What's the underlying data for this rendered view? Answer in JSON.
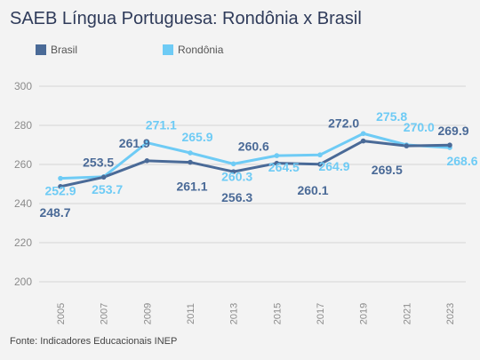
{
  "title": "SAEB Língua Portuguesa: Rondônia x Brasil",
  "source": "Fonte: Indicadores Educacionais INEP",
  "chart_data": {
    "type": "line",
    "title": "SAEB Língua Portuguesa: Rondônia x Brasil",
    "x": [
      "2005",
      "2007",
      "2009",
      "2011",
      "2013",
      "2015",
      "2017",
      "2019",
      "2021",
      "2023"
    ],
    "series": [
      {
        "name": "Brasil",
        "color": "#4a6a97",
        "values": [
          248.7,
          253.5,
          261.9,
          261.1,
          256.3,
          260.6,
          260.1,
          272.0,
          269.5,
          269.9
        ],
        "labels": [
          "248.7",
          "253.5",
          "261.9",
          "261.1",
          "256.3",
          "260.6",
          "260.1",
          "272.0",
          "269.5",
          "269.9"
        ]
      },
      {
        "name": "Rondônia",
        "color": "#6ecbf5",
        "values": [
          252.9,
          253.7,
          271.1,
          265.9,
          260.3,
          264.5,
          264.9,
          275.8,
          270.0,
          268.6
        ],
        "labels": [
          "252.9",
          "253.7",
          "271.1",
          "265.9",
          "260.3",
          "264.5",
          "264.9",
          "275.8",
          "270.0",
          "268.6"
        ]
      }
    ],
    "y_ticks": [
      200,
      220,
      240,
      260,
      280,
      300
    ],
    "ylim": [
      200,
      300
    ],
    "grid": true,
    "legend": "top-left"
  }
}
